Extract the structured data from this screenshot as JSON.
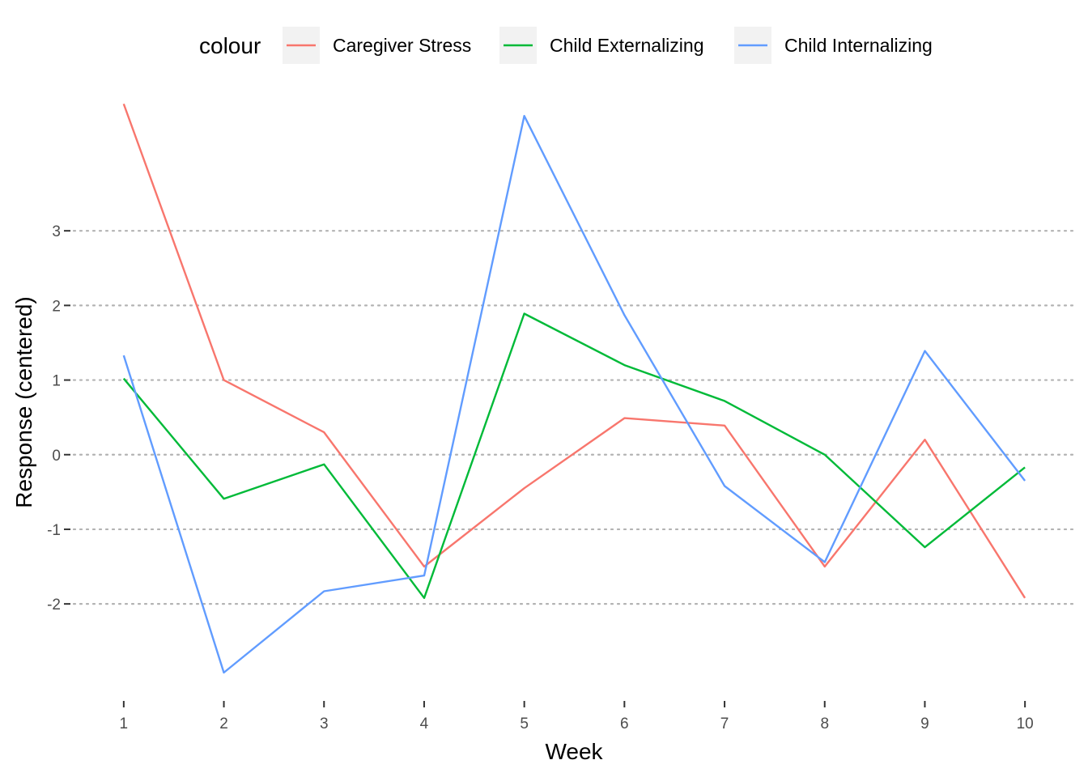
{
  "chart_data": {
    "type": "line",
    "title": "",
    "xlabel": "Week",
    "ylabel": "Response (centered)",
    "x": [
      1,
      2,
      3,
      4,
      5,
      6,
      7,
      8,
      9,
      10
    ],
    "x_ticks": [
      "1",
      "2",
      "3",
      "4",
      "5",
      "6",
      "7",
      "8",
      "9",
      "10"
    ],
    "y_ticks": [
      -2,
      -1,
      0,
      1,
      2,
      3
    ],
    "xlim": [
      0.5,
      10.5
    ],
    "ylim": [
      -3.3,
      4.9
    ],
    "grid": "horizontal dotted major lines",
    "legend": {
      "title": "colour",
      "position": "top"
    },
    "series": [
      {
        "name": "Caregiver Stress",
        "color": "#F8766D",
        "values": [
          4.7,
          1.0,
          0.3,
          -1.5,
          -0.45,
          0.49,
          0.39,
          -1.5,
          0.2,
          -1.92
        ]
      },
      {
        "name": "Child Externalizing",
        "color": "#00BA38",
        "values": [
          1.02,
          -0.59,
          -0.13,
          -1.92,
          1.89,
          1.2,
          0.72,
          0.0,
          -1.24,
          -0.17
        ]
      },
      {
        "name": "Child Internalizing",
        "color": "#619CFF",
        "values": [
          1.33,
          -2.92,
          -1.83,
          -1.62,
          4.54,
          1.87,
          -0.42,
          -1.44,
          1.39,
          -0.35
        ]
      }
    ]
  }
}
